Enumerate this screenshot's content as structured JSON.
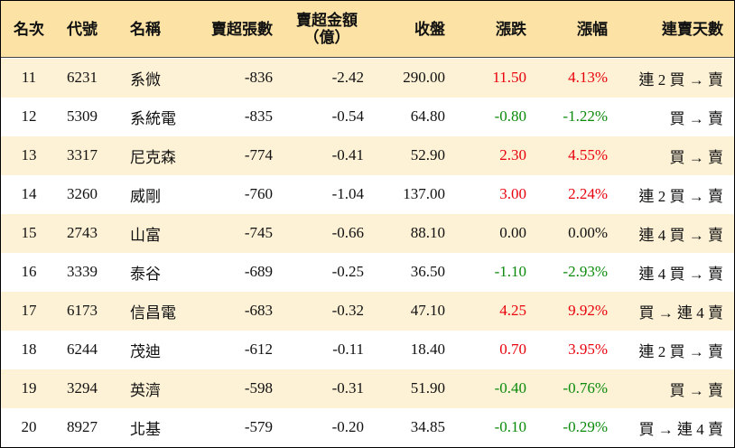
{
  "headers": [
    [
      "名次"
    ],
    [
      "代號"
    ],
    [
      "名稱"
    ],
    [
      "賣超張數"
    ],
    [
      "賣超金額",
      "（億）"
    ],
    [
      "收盤"
    ],
    [
      "漲跌"
    ],
    [
      "漲幅"
    ],
    [
      "連賣天數"
    ]
  ],
  "rows": [
    [
      "11",
      "6231",
      "系微",
      "-836",
      "-2.42",
      "290.00",
      "11.50",
      "4.13%",
      "連 2 買 → 賣"
    ],
    [
      "12",
      "5309",
      "系統電",
      "-835",
      "-0.54",
      "64.80",
      "-0.80",
      "-1.22%",
      "買 → 賣"
    ],
    [
      "13",
      "3317",
      "尼克森",
      "-774",
      "-0.41",
      "52.90",
      "2.30",
      "4.55%",
      "買 → 賣"
    ],
    [
      "14",
      "3260",
      "威剛",
      "-760",
      "-1.04",
      "137.00",
      "3.00",
      "2.24%",
      "連 2 買 → 賣"
    ],
    [
      "15",
      "2743",
      "山富",
      "-745",
      "-0.66",
      "88.10",
      "0.00",
      "0.00%",
      "連 4 買 → 賣"
    ],
    [
      "16",
      "3339",
      "泰谷",
      "-689",
      "-0.25",
      "36.50",
      "-1.10",
      "-2.93%",
      "連 4 買 → 賣"
    ],
    [
      "17",
      "6173",
      "信昌電",
      "-683",
      "-0.32",
      "47.10",
      "4.25",
      "9.92%",
      "買 → 連 4 賣"
    ],
    [
      "18",
      "6244",
      "茂迪",
      "-612",
      "-0.11",
      "18.40",
      "0.70",
      "3.95%",
      "連 2 買 → 賣"
    ],
    [
      "19",
      "3294",
      "英濟",
      "-598",
      "-0.31",
      "51.90",
      "-0.40",
      "-0.76%",
      "買 → 賣"
    ],
    [
      "20",
      "8927",
      "北基",
      "-579",
      "-0.20",
      "34.85",
      "-0.10",
      "-0.29%",
      "買 → 連 4 賣"
    ]
  ]
}
